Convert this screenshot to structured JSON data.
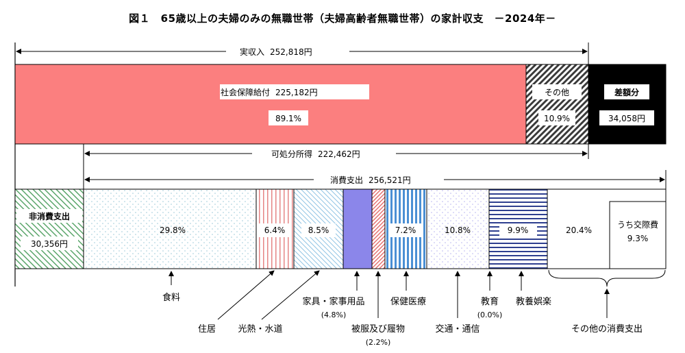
{
  "title": "図１　65歳以上の夫婦のみの無職世帯（夫婦高齢者無職世帯）の家計収支　－2024年－",
  "chart_data": {
    "type": "bar",
    "income": {
      "total_label": "実収入",
      "total_value": "252,818円",
      "segments": [
        {
          "name": "社会保障給付",
          "amount": "225,182円",
          "percent": "89.1%",
          "value": 89.1,
          "color": "#fb7f7f"
        },
        {
          "name": "その他",
          "percent": "10.9%",
          "value": 10.9,
          "color": "#555555"
        }
      ],
      "deficit": {
        "name": "差額分",
        "amount": "34,058円",
        "color": "#000000"
      }
    },
    "disposable": {
      "label": "可処分所得",
      "value": "222,462円"
    },
    "expenditure": {
      "total_label": "消費支出",
      "total_value": "256,521円",
      "non_consumption": {
        "name": "非消費支出",
        "amount": "30,356円"
      },
      "categories": [
        {
          "name": "食料",
          "percent": "29.8%",
          "value": 29.8
        },
        {
          "name": "住居",
          "percent": "6.4%",
          "value": 6.4
        },
        {
          "name": "光熱・水道",
          "percent": "8.5%",
          "value": 8.5
        },
        {
          "name": "家具・家事用品",
          "percent": "(4.8%)",
          "value": 4.8
        },
        {
          "name": "被服及び履物",
          "percent": "(2.2%)",
          "value": 2.2
        },
        {
          "name": "保健医療",
          "percent": "7.2%",
          "value": 7.2
        },
        {
          "name": "交通・通信",
          "percent": "10.8%",
          "value": 10.8
        },
        {
          "name": "教育",
          "percent": "(0.0%)",
          "value": 0.0
        },
        {
          "name": "教養娯楽",
          "percent": "9.9%",
          "value": 9.9
        },
        {
          "name": "その他の消費支出",
          "percent": "20.4%",
          "value": 20.4
        }
      ],
      "note": {
        "label": "うち交際費",
        "percent": "9.3%",
        "value": 9.3
      }
    }
  }
}
